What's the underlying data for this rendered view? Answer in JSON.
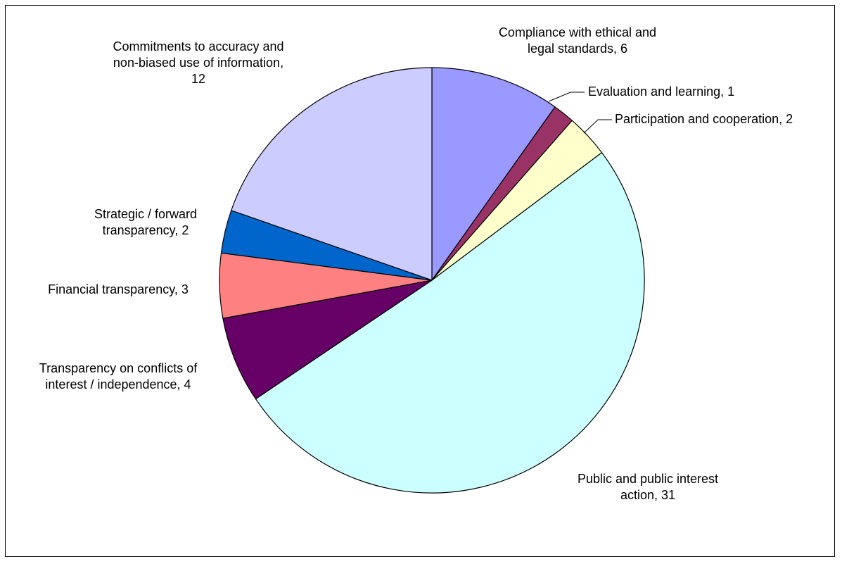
{
  "chart_data": {
    "type": "pie",
    "legend": "none",
    "data_labels": "category name, value",
    "slices": [
      {
        "label": "Compliance with ethical and legal standards",
        "value": 6,
        "color": "#9999ff",
        "text_lines": [
          "Compliance with ethical and",
          "legal standards, 6"
        ]
      },
      {
        "label": "Evaluation and learning",
        "value": 1,
        "color": "#993366",
        "text_lines": [
          "Evaluation and learning, 1"
        ]
      },
      {
        "label": "Participation and cooperation",
        "value": 2,
        "color": "#ffffcc",
        "text_lines": [
          "Participation and cooperation, 2"
        ]
      },
      {
        "label": "Public and public interest action",
        "value": 31,
        "color": "#ccffff",
        "text_lines": [
          "Public and public interest",
          "action, 31"
        ]
      },
      {
        "label": "Transparency on conflicts of interest / independence",
        "value": 4,
        "color": "#660066",
        "text_lines": [
          "Transparency on conflicts of",
          "interest / independence, 4"
        ]
      },
      {
        "label": "Financial transparency",
        "value": 3,
        "color": "#ff8080",
        "text_lines": [
          "Financial transparency, 3"
        ]
      },
      {
        "label": "Strategic / forward transparency",
        "value": 2,
        "color": "#0066cc",
        "text_lines": [
          "Strategic / forward",
          "transparency, 2"
        ]
      },
      {
        "label": "Commitments to accuracy and non-biased use of information",
        "value": 12,
        "color": "#ccccff",
        "text_lines": [
          "Commitments to accuracy and",
          "non-biased use of information,",
          "12"
        ]
      }
    ]
  }
}
